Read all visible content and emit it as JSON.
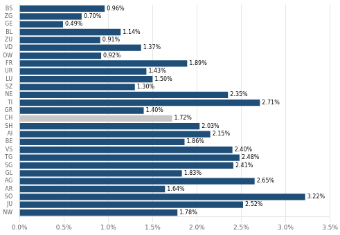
{
  "chart_data": {
    "type": "bar",
    "orientation": "horizontal",
    "categories": [
      "BS",
      "ZG",
      "GE",
      "BL",
      "ZU",
      "VD",
      "OW",
      "FR",
      "UR",
      "LU",
      "SZ",
      "NE",
      "TI",
      "GR",
      "CH",
      "SH",
      "AI",
      "BE",
      "VS",
      "TG",
      "SG",
      "GL",
      "AG",
      "AR",
      "SO",
      "JU",
      "NW"
    ],
    "values": [
      0.96,
      0.7,
      0.49,
      1.14,
      0.91,
      1.37,
      0.92,
      1.89,
      1.43,
      1.5,
      1.3,
      2.35,
      2.71,
      1.4,
      1.72,
      2.03,
      2.15,
      1.86,
      2.4,
      2.48,
      2.41,
      1.83,
      2.65,
      1.64,
      3.22,
      2.52,
      1.78
    ],
    "value_labels": [
      "0.96%",
      "0.70%",
      "0.49%",
      "1.14%",
      "0.91%",
      "1.37%",
      "0.92%",
      "1.89%",
      "1.43%",
      "1.50%",
      "1.30%",
      "2.35%",
      "2.71%",
      "1.40%",
      "1.72%",
      "2.03%",
      "2.15%",
      "1.86%",
      "2.40%",
      "2.48%",
      "2.41%",
      "1.83%",
      "2.65%",
      "1.64%",
      "3.22%",
      "2.52%",
      "1.78%"
    ],
    "colors": [
      "#1F4E79",
      "#1F4E79",
      "#1F4E79",
      "#1F4E79",
      "#1F4E79",
      "#1F4E79",
      "#1F4E79",
      "#1F4E79",
      "#1F4E79",
      "#1F4E79",
      "#1F4E79",
      "#1F4E79",
      "#1F4E79",
      "#1F4E79",
      "#C8C8C8",
      "#1F4E79",
      "#1F4E79",
      "#1F4E79",
      "#1F4E79",
      "#1F4E79",
      "#1F4E79",
      "#1F4E79",
      "#1F4E79",
      "#1F4E79",
      "#1F4E79",
      "#1F4E79",
      "#1F4E79"
    ],
    "xlim": [
      0,
      3.5
    ],
    "xticks": [
      {
        "value": 0.0,
        "label": "0.0%"
      },
      {
        "value": 0.5,
        "label": "0.5%"
      },
      {
        "value": 1.0,
        "label": "1.0%"
      },
      {
        "value": 1.5,
        "label": "1.5%"
      },
      {
        "value": 2.0,
        "label": "2.0%"
      },
      {
        "value": 2.5,
        "label": "2.5%"
      },
      {
        "value": 3.0,
        "label": "3.0%"
      },
      {
        "value": 3.5,
        "label": "3.5%"
      }
    ],
    "grid": true,
    "data_labels": true
  }
}
